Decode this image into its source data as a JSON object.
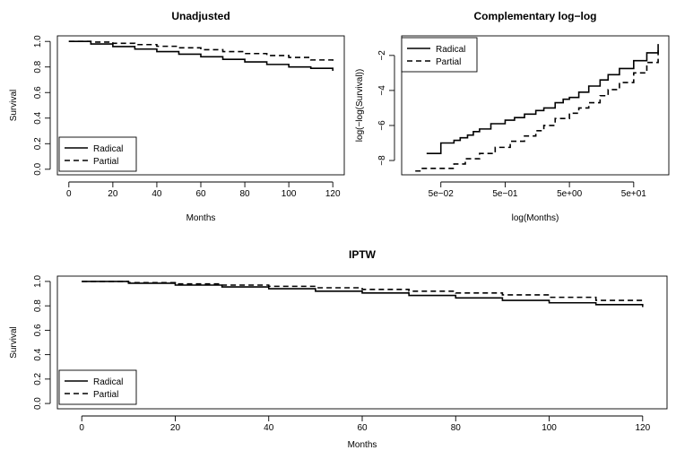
{
  "chart_data": [
    {
      "type": "line",
      "title": "Unadjusted",
      "xlabel": "Months",
      "ylabel": "Survival",
      "xlim": [
        0,
        120
      ],
      "ylim": [
        0,
        1
      ],
      "x_ticks": [
        0,
        20,
        40,
        60,
        80,
        100,
        120
      ],
      "y_ticks": [
        0.0,
        0.2,
        0.4,
        0.6,
        0.8,
        1.0
      ],
      "x_tick_labels": [
        "0",
        "20",
        "40",
        "60",
        "80",
        "100",
        "120"
      ],
      "y_tick_labels": [
        "0.0",
        "0.2",
        "0.4",
        "0.6",
        "0.8",
        "1.0"
      ],
      "log_x": false,
      "grid": false,
      "legend_position": "bottom-left",
      "series": [
        {
          "name": "Radical",
          "style": "solid",
          "step": true,
          "x": [
            0,
            10,
            20,
            30,
            40,
            50,
            60,
            70,
            80,
            90,
            100,
            110,
            120
          ],
          "y": [
            1.0,
            0.98,
            0.96,
            0.94,
            0.92,
            0.9,
            0.88,
            0.86,
            0.84,
            0.82,
            0.8,
            0.79,
            0.77
          ]
        },
        {
          "name": "Partial",
          "style": "dashed",
          "step": true,
          "x": [
            0,
            10,
            20,
            30,
            40,
            50,
            60,
            70,
            80,
            90,
            100,
            110,
            120
          ],
          "y": [
            1.0,
            0.995,
            0.985,
            0.975,
            0.962,
            0.95,
            0.935,
            0.92,
            0.905,
            0.89,
            0.875,
            0.855,
            0.83
          ]
        }
      ]
    },
    {
      "type": "line",
      "title": "Complementary log−log",
      "xlabel": "log(Months)",
      "ylabel": "log(−log(Survival))",
      "xlim": [
        0.018,
        120
      ],
      "ylim": [
        -8.5,
        -1.2
      ],
      "x_ticks": [
        0.05,
        0.5,
        5,
        50
      ],
      "y_ticks": [
        -8,
        -6,
        -4,
        -2
      ],
      "x_tick_labels": [
        "5e−02",
        "5e−01",
        "5e+00",
        "5e+01"
      ],
      "y_tick_labels": [
        "−8",
        "−6",
        "−4",
        "−2"
      ],
      "log_x": true,
      "grid": false,
      "legend_position": "top-left",
      "series": [
        {
          "name": "Radical",
          "style": "solid",
          "step": true,
          "x": [
            0.03,
            0.05,
            0.08,
            0.1,
            0.13,
            0.16,
            0.2,
            0.3,
            0.5,
            0.7,
            1,
            1.5,
            2,
            3,
            4,
            5,
            7,
            10,
            15,
            20,
            30,
            50,
            80,
            120
          ],
          "y": [
            -7.6,
            -7.0,
            -6.85,
            -6.7,
            -6.55,
            -6.35,
            -6.2,
            -5.9,
            -5.7,
            -5.55,
            -5.35,
            -5.15,
            -5.0,
            -4.7,
            -4.5,
            -4.4,
            -4.1,
            -3.75,
            -3.4,
            -3.1,
            -2.75,
            -2.3,
            -1.85,
            -1.35
          ]
        },
        {
          "name": "Partial",
          "style": "dashed",
          "step": true,
          "x": [
            0.02,
            0.025,
            0.08,
            0.12,
            0.2,
            0.35,
            0.6,
            1,
            1.5,
            2,
            3,
            5,
            7,
            10,
            15,
            20,
            30,
            50,
            80,
            120
          ],
          "y": [
            -8.6,
            -8.45,
            -8.2,
            -7.9,
            -7.6,
            -7.25,
            -6.9,
            -6.6,
            -6.3,
            -6.0,
            -5.6,
            -5.3,
            -5.0,
            -4.7,
            -4.3,
            -3.95,
            -3.55,
            -3.0,
            -2.4,
            -1.7
          ]
        }
      ]
    },
    {
      "type": "line",
      "title": "IPTW",
      "xlabel": "Months",
      "ylabel": "Survival",
      "xlim": [
        0,
        120
      ],
      "ylim": [
        0,
        1
      ],
      "x_ticks": [
        0,
        20,
        40,
        60,
        80,
        100,
        120
      ],
      "y_ticks": [
        0.0,
        0.2,
        0.4,
        0.6,
        0.8,
        1.0
      ],
      "x_tick_labels": [
        "0",
        "20",
        "40",
        "60",
        "80",
        "100",
        "120"
      ],
      "y_tick_labels": [
        "0.0",
        "0.2",
        "0.4",
        "0.6",
        "0.8",
        "1.0"
      ],
      "log_x": false,
      "grid": false,
      "legend_position": "bottom-left",
      "series": [
        {
          "name": "Radical",
          "style": "solid",
          "step": true,
          "x": [
            0,
            10,
            20,
            30,
            40,
            50,
            60,
            70,
            80,
            90,
            100,
            110,
            120
          ],
          "y": [
            1.0,
            0.985,
            0.97,
            0.955,
            0.94,
            0.92,
            0.905,
            0.885,
            0.865,
            0.845,
            0.825,
            0.81,
            0.79
          ]
        },
        {
          "name": "Partial",
          "style": "dashed",
          "step": true,
          "x": [
            0,
            10,
            20,
            30,
            40,
            50,
            60,
            70,
            80,
            90,
            100,
            110,
            120
          ],
          "y": [
            1.0,
            0.99,
            0.98,
            0.97,
            0.96,
            0.948,
            0.935,
            0.92,
            0.905,
            0.89,
            0.87,
            0.845,
            0.825
          ]
        }
      ]
    }
  ]
}
